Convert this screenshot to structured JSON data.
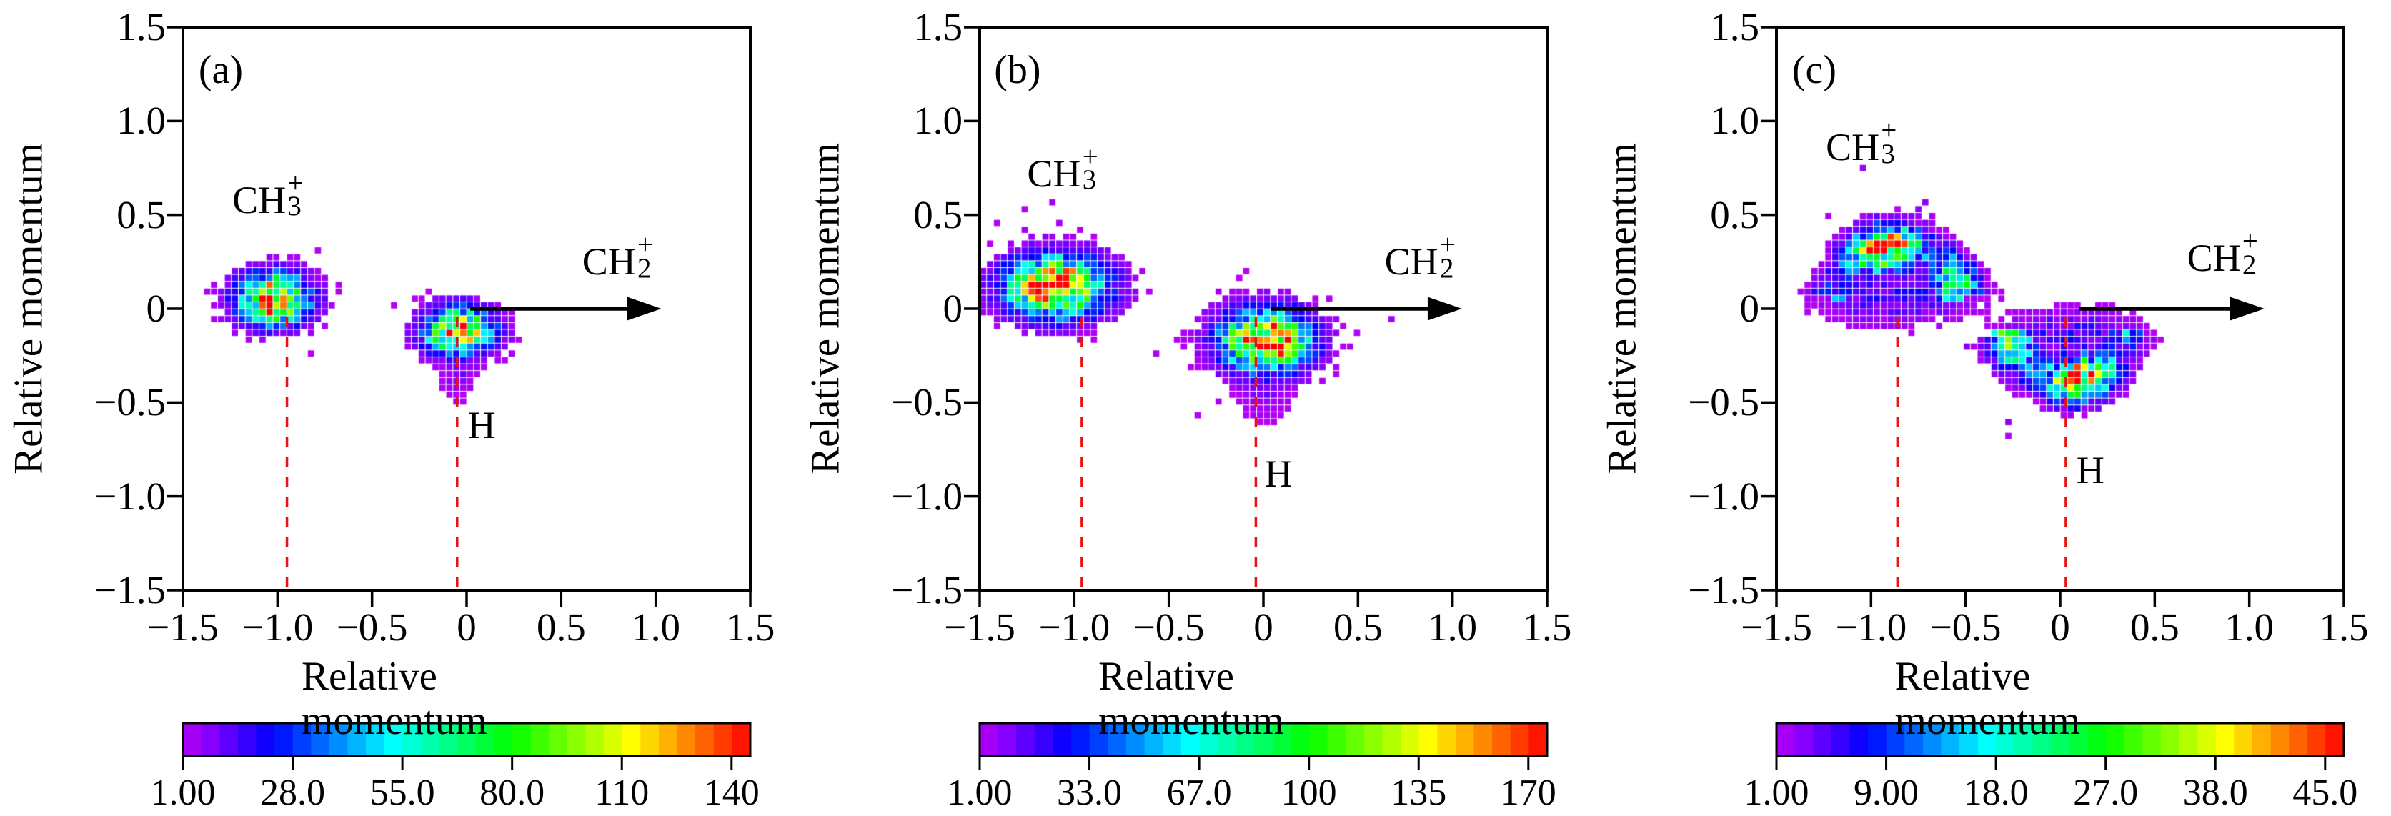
{
  "figure": {
    "background": "#ffffff",
    "colors": {
      "dashed_line": "#e81212",
      "frame": "#000000",
      "arrow": "#000000"
    }
  },
  "chart_data": {
    "type": "heatmap",
    "grid": false,
    "bin_size": 0.0366,
    "axes": {
      "x_label": "Relative momentum",
      "y_label": "Relative momentum",
      "xlim": [
        -1.5,
        1.5
      ],
      "ylim": [
        -1.5,
        1.5
      ],
      "x_ticks": {
        "labels": [
          "−1.5",
          "−1.0",
          "−0.5",
          "0",
          "0.5",
          "1.0",
          "1.5"
        ],
        "values": [
          -1.5,
          -1.0,
          -0.5,
          0,
          0.5,
          1.0,
          1.5
        ]
      },
      "y_ticks": {
        "labels": [
          "1.5",
          "1.0",
          "0.5",
          "0",
          "−0.5",
          "−1.0",
          "−1.5"
        ],
        "values": [
          1.5,
          1.0,
          0.5,
          0,
          -0.5,
          -1.0,
          -1.5
        ]
      }
    },
    "colormap": "rainbow-violet-to-red-31-segments",
    "panels": [
      {
        "panel_label": "(a)",
        "xlabel": "Relative momentum",
        "ylabel": "Relative momentum",
        "colorbar": {
          "tick_labels": [
            "1.00",
            "28.0",
            "55.0",
            "80.0",
            "110",
            "140"
          ],
          "vmin": 1,
          "vmax": 145,
          "segments": 31
        },
        "annotations": {
          "fragment1": {
            "base": "CH",
            "sub": "3",
            "sup": "+",
            "x": -1.03,
            "y": 0.58
          },
          "fragment2": {
            "text": "H",
            "x": 0.08,
            "y": -0.62
          },
          "arrow_label": {
            "base": "CH",
            "sub": "2",
            "sup": "+",
            "x": 0.82,
            "y": 0.25
          }
        },
        "arrow": {
          "y": 0,
          "x_start": 0.02,
          "x_end": 1.03
        },
        "dashed_lines_x": [
          -0.95,
          -0.05
        ],
        "clusters": [
          {
            "name": "CH3+",
            "shape": "gauss",
            "center": [
              -1.02,
              0.05
            ],
            "sigma": [
              0.115,
              0.083
            ],
            "peak": 140
          },
          {
            "name": "H",
            "shape": "gauss",
            "center": [
              -0.04,
              -0.12
            ],
            "sigma": [
              0.108,
              0.075
            ],
            "peak": 140,
            "tail": {
              "center": [
                -0.04,
                -0.32
              ],
              "sigma": [
                0.05,
                0.095
              ],
              "peak": 9
            }
          }
        ],
        "seed": 5
      },
      {
        "panel_label": "(b)",
        "xlabel": "Relative momentum",
        "ylabel": "Relative momentum",
        "colorbar": {
          "tick_labels": [
            "1.00",
            "33.0",
            "67.0",
            "100",
            "135",
            "170"
          ],
          "vmin": 1,
          "vmax": 172,
          "segments": 31
        },
        "annotations": {
          "fragment1": {
            "base": "CH",
            "sub": "3",
            "sup": "+",
            "x": -1.04,
            "y": 0.72
          },
          "fragment2": {
            "text": "H",
            "x": 0.08,
            "y": -0.88
          },
          "arrow_label": {
            "base": "CH",
            "sub": "2",
            "sup": "+",
            "x": 0.85,
            "y": 0.25
          }
        },
        "arrow": {
          "y": 0,
          "x_start": 0.04,
          "x_end": 1.05
        },
        "dashed_lines_x": [
          -0.96,
          -0.04
        ],
        "clusters": [
          {
            "name": "CH3+",
            "shape": "gauss",
            "center": [
              -1.1,
              0.12
            ],
            "sigma": [
              0.16,
              0.1
            ],
            "peak": 170
          },
          {
            "name": "H",
            "shape": "gauss",
            "center": [
              0.01,
              -0.17
            ],
            "sigma": [
              0.145,
              0.1
            ],
            "peak": 170,
            "tail": {
              "center": [
                0.0,
                -0.43
              ],
              "sigma": [
                0.07,
                0.08
              ],
              "peak": 11
            }
          }
        ],
        "seed": 11
      },
      {
        "panel_label": "(c)",
        "xlabel": "Relative momentum",
        "ylabel": "Relative momentum",
        "colorbar": {
          "tick_labels": [
            "1.00",
            "9.00",
            "18.0",
            "27.0",
            "38.0",
            "45.0"
          ],
          "vmin": 1,
          "vmax": 46,
          "segments": 31
        },
        "annotations": {
          "fragment1": {
            "base": "CH",
            "sub": "3",
            "sup": "+",
            "x": -1.03,
            "y": 0.86
          },
          "fragment2": {
            "text": "H",
            "x": 0.16,
            "y": -0.86
          },
          "arrow_label": {
            "base": "CH",
            "sub": "2",
            "sup": "+",
            "x": 0.88,
            "y": 0.27
          }
        },
        "arrow": {
          "y": 0,
          "x_start": 0.1,
          "x_end": 1.08
        },
        "dashed_lines_x": [
          -0.86,
          0.03
        ],
        "clusters": [
          {
            "name": "CH3+",
            "shape": "arc",
            "center": [
              -0.86,
              -0.02
            ],
            "radius": 0.35,
            "sigma_r": 0.075,
            "angles": [
              12,
              168
            ],
            "peak": 34,
            "fill": {
              "center": [
                -0.86,
                0.07
              ],
              "sigma": [
                0.27,
                0.1
              ],
              "peak": 6
            }
          },
          {
            "name": "H",
            "shape": "arc",
            "center": [
              0.04,
              -0.06
            ],
            "radius": 0.32,
            "sigma_r": 0.075,
            "angles": [
              190,
              350
            ],
            "peak": 34,
            "fill": {
              "center": [
                0.04,
                -0.14
              ],
              "sigma": [
                0.24,
                0.09
              ],
              "peak": 6
            }
          }
        ],
        "seed": 29
      }
    ]
  }
}
